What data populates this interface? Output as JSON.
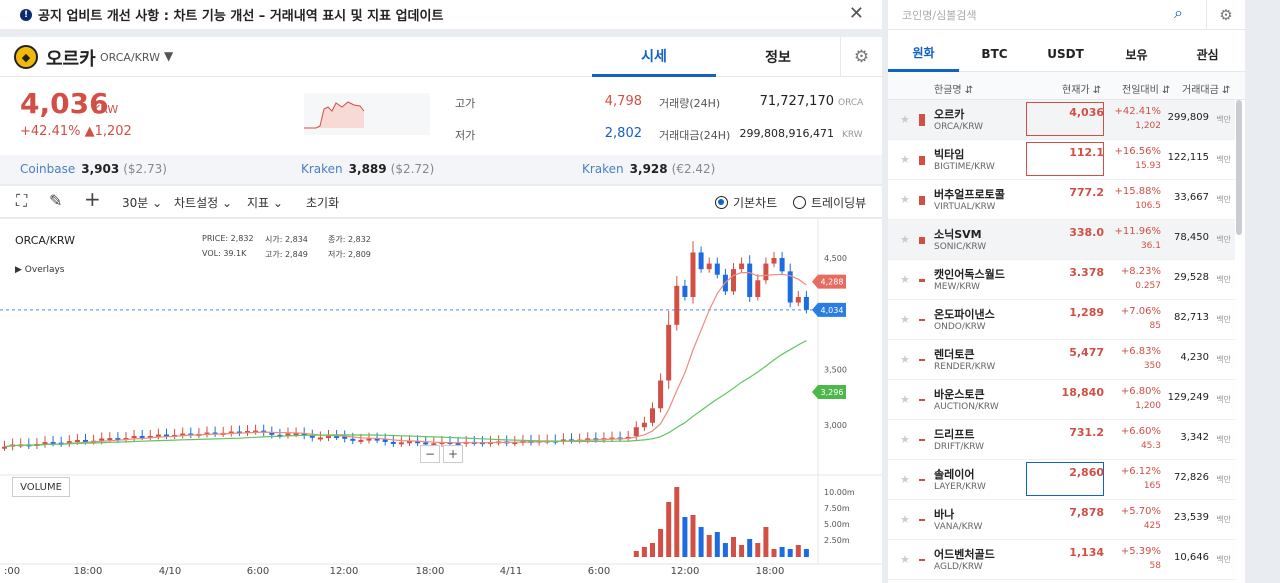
{
  "notice": {
    "icon": "info-icon",
    "text": "공지 업비트 개선 사항 : 차트 기능 개선 – 거래내역 표시 및 지표 업데이트"
  },
  "coin": {
    "name": "오르카",
    "pair": "ORCA/KRW",
    "tabs": [
      "시세",
      "정보"
    ],
    "price": "4,036",
    "unit": "KRW",
    "change_pct": "+42.41%",
    "change_abs": "▲1,202",
    "high_label": "고가",
    "high": "4,798",
    "low_label": "저가",
    "low": "2,802",
    "vol_label": "거래량(24H)",
    "vol": "71,727,170",
    "vol_unit": "ORCA",
    "amt_label": "거래대금(24H)",
    "amt": "299,808,916,471",
    "amt_unit": "KRW"
  },
  "external": [
    {
      "name": "Coinbase",
      "price": "3,903",
      "sub": "($2.73)"
    },
    {
      "name": "Kraken",
      "price": "3,889",
      "sub": "($2.72)"
    },
    {
      "name": "Kraken",
      "price": "3,928",
      "sub": "(€2.42)"
    }
  ],
  "toolbar": {
    "interval": "30분",
    "settings": "차트설정",
    "indicators": "지표",
    "reset": "초기화",
    "basic_chart": "기본차트",
    "trading_view": "트레이딩뷰"
  },
  "chart": {
    "pair": "ORCA/KRW",
    "overlays": "Overlays",
    "ohlc": {
      "price_l": "PRICE:",
      "price": "2,832",
      "open_l": "시가:",
      "open": "2,834",
      "close_l": "종가:",
      "close": "2,832",
      "vol_l": "VOL:",
      "vol": "39.1K",
      "high_l": "고가:",
      "high": "2,849",
      "low_l": "저가:",
      "low": "2,809"
    },
    "volume_label": "VOLUME",
    "y_ticks": [
      "4,500",
      "3,500",
      "3,000"
    ],
    "vol_ticks": [
      "10.00m",
      "7.50m",
      "5.00m",
      "2.50m"
    ],
    "x_ticks": [
      ":00",
      "18:00",
      "4/10",
      "6:00",
      "12:00",
      "18:00",
      "4/11",
      "6:00",
      "12:00",
      "18:00"
    ],
    "badges": {
      "ma_short": "4,288",
      "price": "4,034",
      "ma_long": "3,296"
    },
    "zoom_out": "−",
    "zoom_in": "+"
  },
  "chart_data": {
    "type": "candlestick",
    "title": "ORCA/KRW",
    "x": [
      ":00",
      "18:00",
      "4/10",
      "6:00",
      "12:00",
      "18:00",
      "4/11",
      "6:00",
      "12:00",
      "18:00"
    ],
    "y_ticks": [
      3000,
      3500,
      4500
    ],
    "current_price": 4034,
    "ma_short_last": 4288,
    "ma_long_last": 3296,
    "volume_ticks": [
      "2.50m",
      "5.00m",
      "7.50m",
      "10.00m"
    ],
    "colors": {
      "up": "#d24f45",
      "down": "#1c6be0",
      "ma_short": "#f08a7e",
      "ma_long": "#62c462"
    }
  },
  "market": {
    "search_placeholder": "코인명/심볼검색",
    "tabs": [
      "원화",
      "BTC",
      "USDT",
      "보유",
      "관심"
    ],
    "headers": [
      "한글명",
      "현재가",
      "전일대비",
      "거래대금"
    ],
    "rows": [
      {
        "name": "오르카",
        "pair": "ORCA/KRW",
        "price": "4,036",
        "pct": "+42.41%",
        "chg": "1,202",
        "vol": "299,809",
        "unit": "백만"
      },
      {
        "name": "빅타임",
        "pair": "BIGTIME/KRW",
        "price": "112.1",
        "pct": "+16.56%",
        "chg": "15.93",
        "vol": "122,115",
        "unit": "백만"
      },
      {
        "name": "버추얼프로토콜",
        "pair": "VIRTUAL/KRW",
        "price": "777.2",
        "pct": "+15.88%",
        "chg": "106.5",
        "vol": "33,667",
        "unit": "백만"
      },
      {
        "name": "소닉SVM",
        "pair": "SONIC/KRW",
        "price": "338.0",
        "pct": "+11.96%",
        "chg": "36.1",
        "vol": "78,450",
        "unit": "백만"
      },
      {
        "name": "캣인어독스월드",
        "pair": "MEW/KRW",
        "price": "3.378",
        "pct": "+8.23%",
        "chg": "0.257",
        "vol": "29,528",
        "unit": "백만"
      },
      {
        "name": "온도파이낸스",
        "pair": "ONDO/KRW",
        "price": "1,289",
        "pct": "+7.06%",
        "chg": "85",
        "vol": "82,713",
        "unit": "백만"
      },
      {
        "name": "렌더토큰",
        "pair": "RENDER/KRW",
        "price": "5,477",
        "pct": "+6.83%",
        "chg": "350",
        "vol": "4,230",
        "unit": "백만"
      },
      {
        "name": "바운스토큰",
        "pair": "AUCTION/KRW",
        "price": "18,840",
        "pct": "+6.80%",
        "chg": "1,200",
        "vol": "129,249",
        "unit": "백만"
      },
      {
        "name": "드리프트",
        "pair": "DRIFT/KRW",
        "price": "731.2",
        "pct": "+6.60%",
        "chg": "45.3",
        "vol": "3,342",
        "unit": "백만"
      },
      {
        "name": "솔레이어",
        "pair": "LAYER/KRW",
        "price": "2,860",
        "pct": "+6.12%",
        "chg": "165",
        "vol": "72,826",
        "unit": "백만"
      },
      {
        "name": "바나",
        "pair": "VANA/KRW",
        "price": "7,878",
        "pct": "+5.70%",
        "chg": "425",
        "vol": "23,539",
        "unit": "백만"
      },
      {
        "name": "어드벤처골드",
        "pair": "AGLD/KRW",
        "price": "1,134",
        "pct": "+5.39%",
        "chg": "58",
        "vol": "10,646",
        "unit": "백만"
      }
    ]
  }
}
